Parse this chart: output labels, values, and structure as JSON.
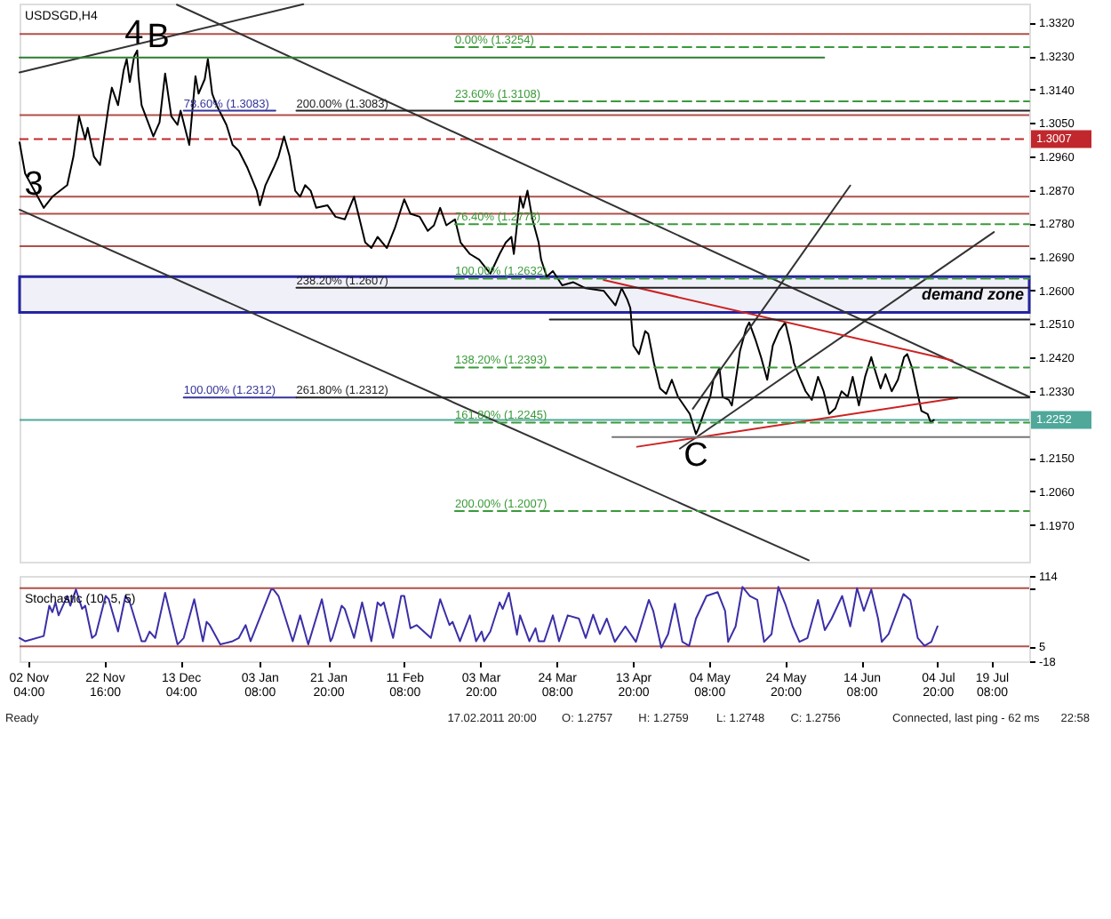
{
  "chart_data": [
    {
      "type": "line",
      "title": "USDSGD,H4",
      "xlim": [
        "2010-10-30T20:00",
        "2011-07-29T12:00"
      ],
      "ylim": [
        1.1871,
        1.3371
      ],
      "tick_labels": "y",
      "yticks": [
        {
          "value": 1.332,
          "label": "1.3320"
        },
        {
          "value": 1.323,
          "label": "1.3230"
        },
        {
          "value": 1.314,
          "label": "1.3140"
        },
        {
          "value": 1.305,
          "label": "1.3050"
        },
        {
          "value": 1.296,
          "label": "1.2960"
        },
        {
          "value": 1.287,
          "label": "1.2870"
        },
        {
          "value": 1.278,
          "label": "1.2780"
        },
        {
          "value": 1.269,
          "label": "1.2690"
        },
        {
          "value": 1.26,
          "label": "1.2600"
        },
        {
          "value": 1.251,
          "label": "1.2510"
        },
        {
          "value": 1.242,
          "label": "1.2420"
        },
        {
          "value": 1.233,
          "label": "1.2330"
        },
        {
          "value": 1.215,
          "label": "1.2150"
        },
        {
          "value": 1.206,
          "label": "1.2060"
        },
        {
          "value": 1.197,
          "label": "1.1970"
        }
      ],
      "series": [
        {
          "color": "#000000",
          "x": [
            "2010-10-30T20:00",
            "2010-11-01T08:00",
            "2010-11-03T20:00",
            "2010-11-06T08:00",
            "2010-11-08T16:00",
            "2010-11-12T16:00",
            "2010-11-14T08:00",
            "2010-11-15T20:00",
            "2010-11-17T12:00",
            "2010-11-18T04:00",
            "2010-11-19T20:00",
            "2010-11-21T12:00",
            "2010-11-23T20:00",
            "2010-11-24T16:00",
            "2010-11-26T08:00",
            "2010-11-27T20:00",
            "2010-11-28T16:00",
            "2010-11-29T12:00",
            "2010-11-30T16:00",
            "2010-12-01T12:00",
            "2010-12-01T20:00",
            "2010-12-02T16:00",
            "2010-12-05T20:00",
            "2010-12-07T12:00",
            "2010-12-09T00:00",
            "2010-12-10T16:00",
            "2010-12-12T08:00",
            "2010-12-13T04:00",
            "2010-12-15T12:00",
            "2010-12-17T04:00",
            "2010-12-18T00:00",
            "2010-12-19T16:00",
            "2010-12-20T12:00",
            "2010-12-21T16:00",
            "2010-12-22T20:00",
            "2010-12-25T12:00",
            "2010-12-27T04:00",
            "2010-12-28T20:00",
            "2010-12-31T04:00",
            "2011-01-02T16:00",
            "2011-01-03T12:00",
            "2011-01-05T00:00",
            "2011-01-07T04:00",
            "2011-01-08T12:00",
            "2011-01-10T00:00",
            "2011-01-11T12:00",
            "2011-01-13T00:00",
            "2011-01-14T08:00",
            "2011-01-15T16:00",
            "2011-01-17T04:00",
            "2011-01-18T16:00",
            "2011-01-21T16:00",
            "2011-01-23T20:00",
            "2011-01-26T08:00",
            "2011-01-28T20:00",
            "2011-01-30T04:00",
            "2011-01-31T20:00",
            "2011-02-02T12:00",
            "2011-02-04T04:00",
            "2011-02-06T16:00",
            "2011-02-08T20:00",
            "2011-02-11T08:00",
            "2011-02-13T00:00",
            "2011-02-15T12:00",
            "2011-02-17T16:00",
            "2011-02-19T08:00",
            "2011-02-21T00:00",
            "2011-02-22T16:00",
            "2011-02-25T00:00",
            "2011-02-26T12:00",
            "2011-03-01T00:00",
            "2011-03-03T12:00",
            "2011-03-06T12:00",
            "2011-03-09T00:00",
            "2011-03-10T16:00",
            "2011-03-12T04:00",
            "2011-03-12T20:00",
            "2011-03-14T12:00",
            "2011-03-15T08:00",
            "2011-03-16T12:00",
            "2011-03-17T20:00",
            "2011-03-19T12:00",
            "2011-03-20T04:00",
            "2011-03-21T16:00",
            "2011-03-23T08:00",
            "2011-03-25T20:00",
            "2011-03-28T20:00",
            "2011-04-01T04:00",
            "2011-04-06T00:00",
            "2011-04-09T04:00",
            "2011-04-10T20:00",
            "2011-04-12T08:00",
            "2011-04-13T04:00",
            "2011-04-14T00:00",
            "2011-04-15T12:00",
            "2011-04-17T04:00",
            "2011-04-18T00:00",
            "2011-04-19T12:00",
            "2011-04-21T04:00",
            "2011-04-22T20:00",
            "2011-04-24T08:00",
            "2011-04-26T00:00",
            "2011-04-29T04:00",
            "2011-04-30T20:00",
            "2011-05-01T12:00",
            "2011-05-03T04:00",
            "2011-05-04T16:00",
            "2011-05-05T12:00",
            "2011-05-07T04:00",
            "2011-05-08T00:00",
            "2011-05-09T16:00",
            "2011-05-10T12:00",
            "2011-05-12T00:00",
            "2011-05-12T16:00",
            "2011-05-14T08:00",
            "2011-05-15T04:00",
            "2011-05-16T20:00",
            "2011-05-18T08:00",
            "2011-05-20T00:00",
            "2011-05-21T12:00",
            "2011-05-23T04:00",
            "2011-05-24T20:00",
            "2011-05-26T08:00",
            "2011-05-27T04:00",
            "2011-05-28T16:00",
            "2011-05-30T08:00",
            "2011-06-01T00:00",
            "2011-06-02T16:00",
            "2011-06-04T04:00",
            "2011-06-05T16:00",
            "2011-06-07T08:00",
            "2011-06-09T00:00",
            "2011-06-10T16:00",
            "2011-06-12T00:00",
            "2011-06-13T16:00",
            "2011-06-15T08:00",
            "2011-06-17T00:00",
            "2011-06-17T20:00",
            "2011-06-19T12:00",
            "2011-06-20T20:00",
            "2011-06-22T12:00",
            "2011-06-24T04:00",
            "2011-06-25T20:00",
            "2011-06-26T16:00",
            "2011-06-28T00:00",
            "2011-06-29T16:00",
            "2011-06-30T12:00",
            "2011-07-02T04:00",
            "2011-07-03T00:00",
            "2011-07-03T20:00"
          ],
          "values": [
            1.2998,
            1.2914,
            1.2868,
            1.2822,
            1.2852,
            1.2883,
            1.296,
            1.3068,
            1.3006,
            1.3037,
            1.296,
            1.2937,
            1.3098,
            1.3145,
            1.3098,
            1.3191,
            1.3222,
            1.316,
            1.3229,
            1.3245,
            1.3176,
            1.3098,
            1.3014,
            1.3052,
            1.3183,
            1.3068,
            1.3045,
            1.3083,
            1.2991,
            1.3176,
            1.3129,
            1.3168,
            1.3222,
            1.3129,
            1.3098,
            1.3045,
            1.2991,
            1.2975,
            1.2929,
            1.2868,
            1.2829,
            1.2883,
            1.2929,
            1.296,
            1.3014,
            1.296,
            1.2868,
            1.2852,
            1.2883,
            1.2868,
            1.2822,
            1.2829,
            1.2798,
            1.2791,
            1.2852,
            1.2798,
            1.2729,
            1.2714,
            1.2744,
            1.2714,
            1.2768,
            1.2845,
            1.2806,
            1.2798,
            1.276,
            1.2775,
            1.2822,
            1.2775,
            1.2791,
            1.2729,
            1.2698,
            1.2683,
            1.2645,
            1.2698,
            1.2729,
            1.2744,
            1.2698,
            1.2852,
            1.2822,
            1.2868,
            1.2791,
            1.2729,
            1.2683,
            1.2637,
            1.2652,
            1.2614,
            1.2622,
            1.2606,
            1.2599,
            1.256,
            1.2606,
            1.2576,
            1.2553,
            1.2452,
            1.2429,
            1.2491,
            1.2483,
            1.2406,
            1.2337,
            1.2322,
            1.236,
            1.2314,
            1.2268,
            1.2214,
            1.2229,
            1.2276,
            1.2314,
            1.236,
            1.2391,
            1.2314,
            1.2306,
            1.2291,
            1.2391,
            1.2437,
            1.2498,
            1.2514,
            1.2468,
            1.2421,
            1.236,
            1.2452,
            1.2491,
            1.2514,
            1.2452,
            1.2406,
            1.2368,
            1.2329,
            1.2306,
            1.2368,
            1.2329,
            1.2268,
            1.2283,
            1.2329,
            1.2314,
            1.2368,
            1.2291,
            1.2368,
            1.2421,
            1.2391,
            1.2337,
            1.2375,
            1.2329,
            1.236,
            1.2421,
            1.2429,
            1.2391,
            1.2314,
            1.2276,
            1.2268,
            1.2245,
            1.2252
          ]
        },
        {
          "type": "line",
          "color": "#333333",
          "x": [
            "2010-10-30T20:00",
            "2011-01-15T04:00"
          ],
          "values": [
            1.3186,
            1.3369
          ]
        },
        {
          "type": "line",
          "color": "#333333",
          "x": [
            "2010-12-12T04:00",
            "2011-07-29T12:00"
          ],
          "values": [
            1.3368,
            1.2314
          ]
        },
        {
          "type": "line",
          "color": "#333333",
          "x": [
            "2010-10-30T20:00",
            "2011-05-31T04:00"
          ],
          "values": [
            1.2817,
            1.1875
          ]
        },
        {
          "type": "line",
          "color": "#333333",
          "x": [
            "2011-04-30T00:00",
            "2011-06-11T08:00"
          ],
          "values": [
            1.2282,
            1.2882
          ]
        },
        {
          "type": "line",
          "color": "#333333",
          "x": [
            "2011-04-26T12:00",
            "2011-07-20T00:00"
          ],
          "values": [
            1.2175,
            1.2757
          ]
        },
        {
          "type": "line",
          "color": "#cc2222",
          "x": [
            "2011-04-06T00:00",
            "2011-07-08T20:00"
          ],
          "values": [
            1.2628,
            1.2412
          ]
        },
        {
          "type": "line",
          "color": "#cc2222",
          "x": [
            "2011-04-15T00:00",
            "2011-07-10T04:00"
          ],
          "values": [
            1.218,
            1.2311
          ]
        },
        {
          "type": "line",
          "color": "#2e7d32",
          "x": [
            "2010-10-30T20:00",
            "2011-06-04T08:00"
          ],
          "values": [
            1.3226,
            1.3226
          ]
        },
        {
          "type": "line",
          "name": "0.00% (1.3254)",
          "color": "#3a9a3a",
          "line_style": "dashed",
          "x": [
            "2011-02-25T00:00",
            "2011-07-29T12:00"
          ],
          "values": [
            1.3254,
            1.3254
          ]
        },
        {
          "type": "line",
          "name": "23.60% (1.3108)",
          "color": "#3a9a3a",
          "line_style": "dashed",
          "x": [
            "2011-02-25T00:00",
            "2011-07-29T12:00"
          ],
          "values": [
            1.3108,
            1.3108
          ]
        },
        {
          "type": "line",
          "name": "76.40% (1.2778)",
          "color": "#3a9a3a",
          "line_style": "dashed",
          "x": [
            "2011-02-25T00:00",
            "2011-07-29T12:00"
          ],
          "values": [
            1.2778,
            1.2778
          ]
        },
        {
          "type": "line",
          "name": "100.00% (1.2632)",
          "color": "#3a9a3a",
          "line_style": "dashed",
          "x": [
            "2011-02-25T00:00",
            "2011-07-29T12:00"
          ],
          "values": [
            1.2632,
            1.2632
          ]
        },
        {
          "type": "line",
          "name": "138.20% (1.2393)",
          "color": "#3a9a3a",
          "line_style": "dashed",
          "x": [
            "2011-02-25T00:00",
            "2011-07-29T12:00"
          ],
          "values": [
            1.2393,
            1.2393
          ]
        },
        {
          "type": "line",
          "name": "161.80% (1.2245)",
          "color": "#3a9a3a",
          "line_style": "dashed",
          "x": [
            "2011-02-25T00:00",
            "2011-07-29T12:00"
          ],
          "values": [
            1.2245,
            1.2245
          ]
        },
        {
          "type": "line",
          "name": "200.00% (1.2007)",
          "color": "#3a9a3a",
          "line_style": "dashed",
          "x": [
            "2011-02-25T00:00",
            "2011-07-29T12:00"
          ],
          "values": [
            1.2007,
            1.2007
          ]
        },
        {
          "type": "line",
          "name": "78.60% (1.3083)",
          "color": "#333399",
          "x": [
            "2010-12-14T00:00",
            "2011-01-07T16:00"
          ],
          "values": [
            1.3083,
            1.3083
          ]
        },
        {
          "type": "line",
          "name": "100.00% (1.2312)",
          "color": "#333399",
          "x": [
            "2010-12-14T00:00",
            "2011-01-13T08:00"
          ],
          "values": [
            1.2312,
            1.2312
          ]
        },
        {
          "type": "line",
          "name": "200.00% (1.3083)",
          "color": "#222222",
          "x": [
            "2011-01-13T08:00",
            "2011-07-29T12:00"
          ],
          "values": [
            1.3083,
            1.3083
          ]
        },
        {
          "type": "line",
          "name": "238.20% (1.2607)",
          "color": "#222222",
          "x": [
            "2011-01-13T08:00",
            "2011-07-29T12:00"
          ],
          "values": [
            1.2607,
            1.2607
          ]
        },
        {
          "type": "line",
          "name": "261.80% (1.2312)",
          "color": "#222222",
          "x": [
            "2011-01-13T08:00",
            "2011-07-29T12:00"
          ],
          "values": [
            1.2312,
            1.2312
          ]
        },
        {
          "type": "line",
          "color": "#222222",
          "x": [
            "2011-03-22T12:00",
            "2011-07-29T12:00"
          ],
          "values": [
            1.2522,
            1.2522
          ]
        },
        {
          "type": "line",
          "color": "#777777",
          "x": [
            "2011-04-08T08:00",
            "2011-07-29T12:00"
          ],
          "values": [
            1.2206,
            1.2206
          ]
        }
      ],
      "ref_lines": [
        {
          "axis": "y",
          "value": 1.3289,
          "color": "#b0504a"
        },
        {
          "axis": "y",
          "value": 1.3071,
          "color": "#b0504a"
        },
        {
          "axis": "y",
          "value": 1.2852,
          "color": "#b0504a"
        },
        {
          "axis": "y",
          "value": 1.2806,
          "color": "#b0504a"
        },
        {
          "axis": "y",
          "value": 1.2719,
          "color": "#b0504a"
        },
        {
          "axis": "y",
          "value": 1.3007,
          "label": "1.3007",
          "color": "#c0282d",
          "line_style": "dashed"
        },
        {
          "axis": "y",
          "value": 1.2252,
          "label": "1.2252",
          "color": "#4fa89a"
        }
      ],
      "bands": [
        {
          "axis": "y",
          "from": 1.2541,
          "to": 1.2637,
          "label": "demand zone",
          "color": "#2525a0"
        }
      ],
      "annotations": [
        {
          "text": "4",
          "x": "2010-11-30T16:00",
          "y": 1.3292
        },
        {
          "text": "B",
          "x": "2010-12-07T04:00",
          "y": 1.3283
        },
        {
          "text": "3",
          "x": "2010-11-03T16:00",
          "y": 1.2886
        },
        {
          "text": "C",
          "x": "2011-04-30T20:00",
          "y": 1.2214
        }
      ]
    },
    {
      "type": "line",
      "title": "Stochastic (10, 5, 5)",
      "xlim": [
        "2010-10-30T20:00",
        "2011-07-29T12:00"
      ],
      "ylim": [
        -18,
        114
      ],
      "xticks": [
        {
          "value": "2010-11-02T04:00",
          "label": "02 Nov 04:00"
        },
        {
          "value": "2010-11-22T16:00",
          "label": "22 Nov 16:00"
        },
        {
          "value": "2010-12-13T04:00",
          "label": "13 Dec 04:00"
        },
        {
          "value": "2011-01-03T08:00",
          "label": "03 Jan 08:00"
        },
        {
          "value": "2011-01-21T20:00",
          "label": "21 Jan 20:00"
        },
        {
          "value": "2011-02-11T08:00",
          "label": "11 Feb 08:00"
        },
        {
          "value": "2011-03-03T20:00",
          "label": "03 Mar 20:00"
        },
        {
          "value": "2011-03-24T08:00",
          "label": "24 Mar 08:00"
        },
        {
          "value": "2011-04-13T20:00",
          "label": "13 Apr 20:00"
        },
        {
          "value": "2011-05-04T08:00",
          "label": "04 May 08:00"
        },
        {
          "value": "2011-05-24T20:00",
          "label": "24 May 20:00"
        },
        {
          "value": "2011-06-14T08:00",
          "label": "14 Jun 08:00"
        },
        {
          "value": "2011-07-04T20:00",
          "label": "04 Jul 20:00"
        },
        {
          "value": "2011-07-19T08:00",
          "label": "19 Jul 08:00"
        }
      ],
      "yticks": [
        -18,
        5,
        {
          "value": 95,
          "label": null
        },
        114
      ],
      "series": [
        {
          "color": "#3b2fa8",
          "x": [
            "2010-10-30T20:00",
            "2010-11-01T08:00",
            "2010-11-06T08:00",
            "2010-11-07T20:00",
            "2010-11-08T16:00",
            "2010-11-09T12:00",
            "2010-11-10T08:00",
            "2010-11-12T16:00",
            "2010-11-13T12:00",
            "2010-11-15T00:00",
            "2010-11-16T16:00",
            "2010-11-17T12:00",
            "2010-11-19T08:00",
            "2010-11-20T08:00",
            "2010-11-23T00:00",
            "2010-11-23T20:00",
            "2010-11-26T08:00",
            "2010-11-28T08:00",
            "2010-11-29T12:00",
            "2010-12-02T16:00",
            "2010-12-03T16:00",
            "2010-12-04T20:00",
            "2010-12-06T08:00",
            "2010-12-09T00:00",
            "2010-12-12T08:00",
            "2010-12-14T00:00",
            "2010-12-16T20:00",
            "2010-12-19T04:00",
            "2010-12-20T04:00",
            "2010-12-21T00:00",
            "2010-12-23T20:00",
            "2010-12-27T04:00",
            "2010-12-28T20:00",
            "2010-12-30T16:00",
            "2011-01-01T00:00",
            "2011-01-06T12:00",
            "2011-01-07T04:00",
            "2011-01-08T12:00",
            "2011-01-12T08:00",
            "2011-01-14T08:00",
            "2011-01-16T12:00",
            "2011-01-20T04:00",
            "2011-01-22T12:00",
            "2011-01-23T00:00",
            "2011-01-25T12:00",
            "2011-01-26T08:00",
            "2011-01-28T20:00",
            "2011-01-31T00:00",
            "2011-02-02T12:00",
            "2011-02-04T04:00",
            "2011-02-05T00:00",
            "2011-02-05T20:00",
            "2011-02-08T08:00",
            "2011-02-10T12:00",
            "2011-02-11T08:00",
            "2011-02-13T00:00",
            "2011-02-14T16:00",
            "2011-02-18T12:00",
            "2011-02-21T00:00",
            "2011-02-23T12:00",
            "2011-02-24T08:00",
            "2011-02-26T08:00",
            "2011-03-01T00:00",
            "2011-03-02T16:00",
            "2011-03-04T04:00",
            "2011-03-04T20:00",
            "2011-03-06T12:00",
            "2011-03-09T00:00",
            "2011-03-09T20:00",
            "2011-03-11T12:00",
            "2011-03-13T16:00",
            "2011-03-14T12:00",
            "2011-03-17T00:00",
            "2011-03-18T16:00",
            "2011-03-19T12:00",
            "2011-03-21T00:00",
            "2011-03-23T08:00",
            "2011-03-25T00:00",
            "2011-03-27T08:00",
            "2011-03-30T08:00",
            "2011-04-01T04:00",
            "2011-04-03T04:00",
            "2011-04-05T00:00",
            "2011-04-06T20:00",
            "2011-04-09T00:00",
            "2011-04-11T20:00",
            "2011-04-14T16:00",
            "2011-04-18T04:00",
            "2011-04-19T08:00",
            "2011-04-21T12:00",
            "2011-04-23T08:00",
            "2011-04-25T04:00",
            "2011-04-27T04:00",
            "2011-04-29T00:00",
            "2011-04-30T20:00",
            "2011-05-03T16:00",
            "2011-05-06T16:00",
            "2011-05-08T16:00",
            "2011-05-09T12:00",
            "2011-05-11T12:00",
            "2011-05-13T08:00",
            "2011-05-15T08:00",
            "2011-05-17T08:00",
            "2011-05-19T04:00",
            "2011-05-21T04:00",
            "2011-05-23T00:00",
            "2011-05-24T20:00",
            "2011-05-26T20:00",
            "2011-05-28T16:00",
            "2011-05-30T20:00",
            "2011-06-02T16:00",
            "2011-06-04T12:00",
            "2011-06-06T08:00",
            "2011-06-09T04:00",
            "2011-06-11T08:00",
            "2011-06-13T04:00",
            "2011-06-15T00:00",
            "2011-06-17T00:00",
            "2011-06-18T20:00",
            "2011-06-19T20:00",
            "2011-06-21T16:00",
            "2011-06-25T16:00",
            "2011-06-27T12:00",
            "2011-06-29T12:00",
            "2011-07-01T08:00",
            "2011-07-03T04:00",
            "2011-07-04T20:00"
          ],
          "values": [
            18,
            13,
            21,
            68,
            58,
            73,
            53,
            83,
            68,
            93,
            63,
            68,
            18,
            23,
            83,
            78,
            28,
            83,
            73,
            13,
            13,
            28,
            18,
            88,
            8,
            18,
            78,
            13,
            43,
            38,
            8,
            13,
            18,
            38,
            13,
            93,
            93,
            83,
            13,
            53,
            8,
            78,
            13,
            18,
            68,
            63,
            18,
            73,
            13,
            73,
            68,
            73,
            18,
            83,
            83,
            33,
            38,
            18,
            78,
            38,
            43,
            13,
            53,
            13,
            28,
            13,
            28,
            73,
            63,
            88,
            23,
            53,
            13,
            33,
            13,
            13,
            53,
            13,
            53,
            48,
            18,
            54,
            24,
            48,
            12,
            36,
            12,
            77,
            60,
            3,
            24,
            71,
            12,
            6,
            48,
            83,
            89,
            60,
            12,
            36,
            97,
            83,
            77,
            12,
            24,
            97,
            71,
            36,
            12,
            18,
            77,
            30,
            48,
            83,
            36,
            95,
            60,
            93,
            48,
            12,
            24,
            86,
            77,
            18,
            6,
            12,
            36
          ]
        }
      ],
      "ref_lines": [
        {
          "axis": "y",
          "value": 95,
          "color": "#b0504a"
        },
        {
          "axis": "y",
          "value": 5,
          "color": "#b0504a"
        }
      ],
      "annotations": [
        "Ready",
        "17.02.2011 20:00",
        "O: 1.2757",
        "H: 1.2759",
        "L: 1.2748",
        "C: 1.2756",
        "Connected, last ping - 62 ms",
        "22:58"
      ]
    }
  ]
}
